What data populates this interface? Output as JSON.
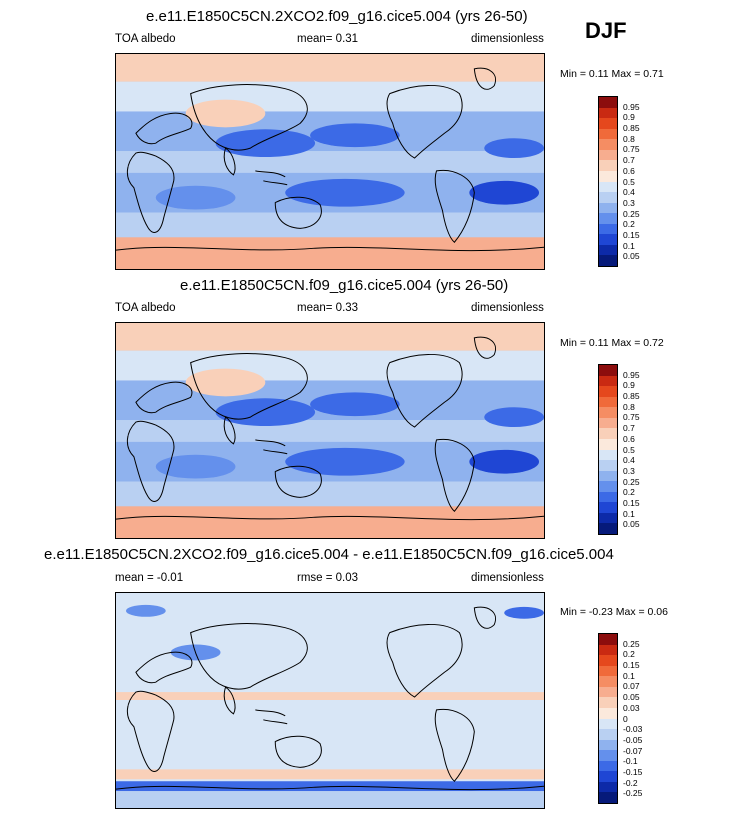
{
  "season": "DJF",
  "panels": [
    {
      "title": "e.e11.E1850C5CN.2XCO2.f09_g16.cice5.004 (yrs 26-50)",
      "left_label": "TOA albedo",
      "center_label": "mean=  0.31",
      "right_label": "dimensionless",
      "minmax": "Min =   0.11 Max =   0.71",
      "colorbar": {
        "labels": [
          "0.95",
          "0.9",
          "0.85",
          "0.8",
          "0.75",
          "0.7",
          "0.6",
          "0.5",
          "0.4",
          "0.3",
          "0.25",
          "0.2",
          "0.15",
          "0.1",
          "0.05"
        ],
        "colors": [
          "#8c0d0d",
          "#c92a12",
          "#e5481d",
          "#f06a3a",
          "#f58d63",
          "#f7ad8f",
          "#f9d0b9",
          "#fbe9dc",
          "#d8e6f6",
          "#b9d0f2",
          "#8fb2ee",
          "#6490ec",
          "#3c6ae6",
          "#1f46d4",
          "#0d2aa8",
          "#061a7a"
        ],
        "map_fill": "blue_albedo"
      }
    },
    {
      "title": "e.e11.E1850C5CN.f09_g16.cice5.004 (yrs 26-50)",
      "left_label": "TOA albedo",
      "center_label": "mean=  0.33",
      "right_label": "dimensionless",
      "minmax": "Min =   0.11 Max =   0.72",
      "colorbar": {
        "labels": [
          "0.95",
          "0.9",
          "0.85",
          "0.8",
          "0.75",
          "0.7",
          "0.6",
          "0.5",
          "0.4",
          "0.3",
          "0.25",
          "0.2",
          "0.15",
          "0.1",
          "0.05"
        ],
        "colors": [
          "#8c0d0d",
          "#c92a12",
          "#e5481d",
          "#f06a3a",
          "#f58d63",
          "#f7ad8f",
          "#f9d0b9",
          "#fbe9dc",
          "#d8e6f6",
          "#b9d0f2",
          "#8fb2ee",
          "#6490ec",
          "#3c6ae6",
          "#1f46d4",
          "#0d2aa8",
          "#061a7a"
        ],
        "map_fill": "blue_albedo"
      }
    },
    {
      "title": "e.e11.E1850C5CN.2XCO2.f09_g16.cice5.004 - e.e11.E1850C5CN.f09_g16.cice5.004",
      "left_label": "mean =  -0.01",
      "center_label": "rmse =   0.03",
      "right_label": "dimensionless",
      "minmax": "Min =  -0.23 Max =   0.06",
      "colorbar": {
        "labels": [
          "0.25",
          "0.2",
          "0.15",
          "0.1",
          "0.07",
          "0.05",
          "0.03",
          "0",
          "-0.03",
          "-0.05",
          "-0.07",
          "-0.1",
          "-0.15",
          "-0.2",
          "-0.25"
        ],
        "colors": [
          "#8c0d0d",
          "#c92a12",
          "#e5481d",
          "#f06a3a",
          "#f58d63",
          "#f7ad8f",
          "#f9d0b9",
          "#fbe9dc",
          "#d8e6f6",
          "#b9d0f2",
          "#8fb2ee",
          "#6490ec",
          "#3c6ae6",
          "#1f46d4",
          "#0d2aa8",
          "#061a7a"
        ],
        "map_fill": "diff"
      }
    }
  ]
}
